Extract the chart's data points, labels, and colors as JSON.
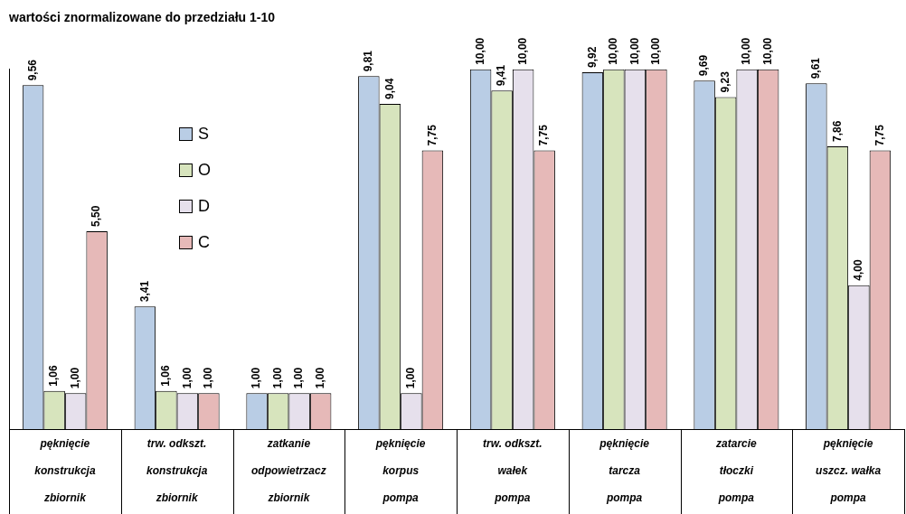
{
  "chart_data": {
    "type": "bar",
    "title": "wartości znormalizowane do przedziału 1-10",
    "categories": [
      "pęknięcie\nkonstrukcja\nzbiornik",
      "trw. odkszt.\nkonstrukcja\nzbiornik",
      "zatkanie\nodpowietrzacz\nzbiornik",
      "pęknięcie\nkorpus\npompa",
      "trw. odkszt.\nwałek\npompa",
      "pęknięcie\ntarcza\npompa",
      "zatarcie\ntłoczki\npompa",
      "pęknięcie\nuszcz. wałka\npompa"
    ],
    "series": [
      {
        "name": "S",
        "color": "#b9cde5",
        "values": [
          9.56,
          3.41,
          1.0,
          9.81,
          10.0,
          9.92,
          9.69,
          9.61
        ],
        "value_labels": [
          "9,56",
          "3,41",
          "1,00",
          "9,81",
          "10,00",
          "9,92",
          "9,69",
          "9,61"
        ]
      },
      {
        "name": "O",
        "color": "#d7e4bd",
        "values": [
          1.06,
          1.06,
          1.0,
          9.04,
          9.41,
          10.0,
          9.23,
          7.86
        ],
        "value_labels": [
          "1,06",
          "1,06",
          "1,00",
          "9,04",
          "9,41",
          "10,00",
          "9,23",
          "7,86"
        ]
      },
      {
        "name": "D",
        "color": "#e6e0ec",
        "values": [
          1.0,
          1.0,
          1.0,
          1.0,
          10.0,
          10.0,
          10.0,
          4.0
        ],
        "value_labels": [
          "1,00",
          "1,00",
          "1,00",
          "1,00",
          "10,00",
          "10,00",
          "10,00",
          "4,00"
        ]
      },
      {
        "name": "C",
        "color": "#e6b9b8",
        "values": [
          5.5,
          1.0,
          1.0,
          7.75,
          7.75,
          10.0,
          10.0,
          7.75
        ],
        "value_labels": [
          "5,50",
          "1,00",
          "1,00",
          "7,75",
          "7,75",
          "10,00",
          "10,00",
          "7,75"
        ]
      }
    ],
    "legend": "top left",
    "grid": false
  }
}
